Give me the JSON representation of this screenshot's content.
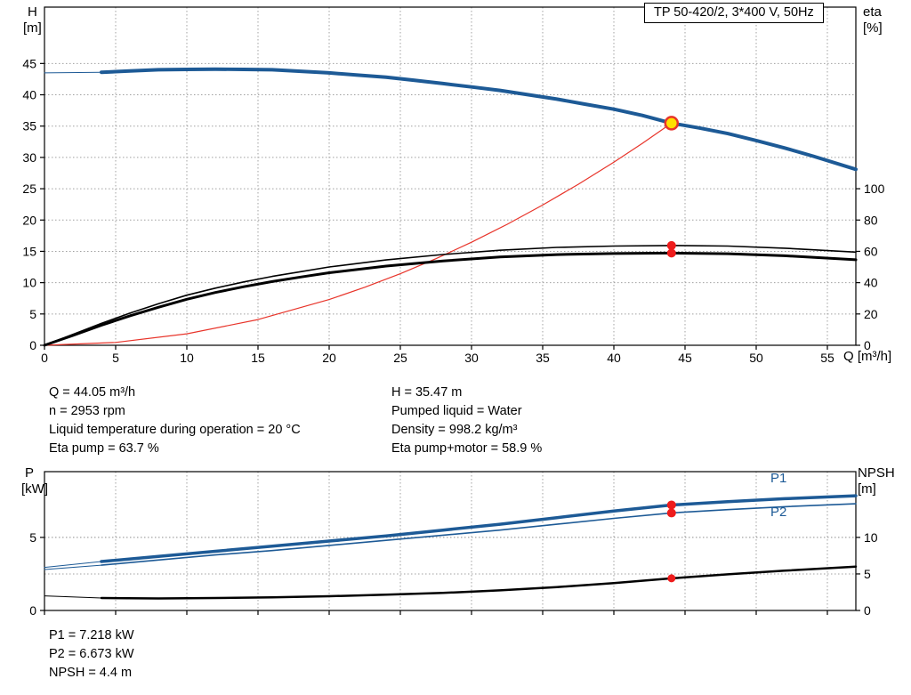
{
  "title_box": "TP 50-420/2, 3*400 V, 50Hz",
  "axes_labels": {
    "top_left_1": "H",
    "top_left_2": "[m]",
    "top_right_1": "eta",
    "top_right_2": "[%]",
    "x_label": "Q [m³/h]",
    "bottom_left_1": "P",
    "bottom_left_2": "[kW]",
    "bottom_right_1": "NPSH",
    "bottom_right_2": "[m]"
  },
  "curve_labels": {
    "p1": "P1",
    "p2": "P2"
  },
  "info": {
    "left": [
      "Q = 44.05 m³/h",
      "n = 2953 rpm",
      "Liquid temperature during operation = 20 °C",
      "Eta pump = 63.7 %"
    ],
    "right": [
      "H = 35.47 m",
      "Pumped liquid = Water",
      "Density = 998.2 kg/m³",
      "Eta pump+motor = 58.9 %"
    ]
  },
  "results": [
    "P1 = 7.218 kW",
    "P2 = 6.673 kW",
    "NPSH = 4.4 m"
  ],
  "colors": {
    "curve_blue": "#1d5a96",
    "system_red": "#e8342a",
    "marker_red": "#ee1c1c",
    "marker_yellow": "#ffe000",
    "grid": "#a0a0a0",
    "frame": "#000000"
  },
  "chart_data": [
    {
      "type": "line",
      "title": "TP 50-420/2, 3*400 V, 50Hz",
      "x_axis": {
        "label": "Q [m³/h]",
        "range": [
          0,
          57
        ],
        "ticks": [
          0,
          5,
          10,
          15,
          20,
          25,
          30,
          35,
          40,
          45,
          50,
          55
        ],
        "show_labels": true
      },
      "y_axis_left": {
        "label": "H [m]",
        "range": [
          0,
          54
        ],
        "ticks": [
          0,
          5,
          10,
          15,
          20,
          25,
          30,
          35,
          40,
          45
        ]
      },
      "y_axis_right": {
        "label": "eta [%]",
        "range": [
          0,
          216
        ],
        "ticks": [
          0,
          20,
          40,
          60,
          80,
          100
        ],
        "grid": false
      },
      "series": [
        {
          "name": "head-curve-lead",
          "axis": "left",
          "color": "#1d5a96",
          "width": 1,
          "points": [
            [
              0,
              43.5
            ],
            [
              4,
              43.6
            ]
          ]
        },
        {
          "name": "head-curve",
          "axis": "left",
          "color": "#1d5a96",
          "width": 4,
          "points": [
            [
              4,
              43.6
            ],
            [
              6,
              43.8
            ],
            [
              8,
              44.0
            ],
            [
              10,
              44.05
            ],
            [
              12,
              44.1
            ],
            [
              14,
              44.05
            ],
            [
              16,
              44.0
            ],
            [
              18,
              43.75
            ],
            [
              20,
              43.5
            ],
            [
              22,
              43.15
            ],
            [
              24,
              42.8
            ],
            [
              26,
              42.3
            ],
            [
              28,
              41.8
            ],
            [
              30,
              41.25
            ],
            [
              32,
              40.7
            ],
            [
              34,
              40.0
            ],
            [
              36,
              39.3
            ],
            [
              38,
              38.5
            ],
            [
              40,
              37.7
            ],
            [
              42,
              36.7
            ],
            [
              44.05,
              35.47
            ],
            [
              46,
              34.7
            ],
            [
              48,
              33.8
            ],
            [
              50,
              32.7
            ],
            [
              52,
              31.5
            ],
            [
              54,
              30.2
            ],
            [
              57,
              28.1
            ]
          ]
        },
        {
          "name": "system-curve",
          "axis": "left",
          "color": "#e8342a",
          "width": 1.2,
          "points": [
            [
              0,
              0
            ],
            [
              5,
              0.46
            ],
            [
              10,
              1.83
            ],
            [
              15,
              4.11
            ],
            [
              20,
              7.31
            ],
            [
              22.5,
              9.26
            ],
            [
              25,
              11.43
            ],
            [
              27.5,
              13.83
            ],
            [
              30,
              16.46
            ],
            [
              32.5,
              19.31
            ],
            [
              35,
              22.4
            ],
            [
              37.5,
              25.71
            ],
            [
              40,
              29.25
            ],
            [
              42,
              32.25
            ],
            [
              44.05,
              35.47
            ]
          ]
        },
        {
          "name": "eta-pump-curve",
          "axis": "right",
          "color": "#000000",
          "width": 1.6,
          "points": [
            [
              0,
              0
            ],
            [
              2,
              7
            ],
            [
              4,
              14
            ],
            [
              6,
              20.5
            ],
            [
              8,
              26.5
            ],
            [
              10,
              32
            ],
            [
              12,
              36.5
            ],
            [
              14,
              40.5
            ],
            [
              16,
              44
            ],
            [
              18,
              47
            ],
            [
              20,
              50
            ],
            [
              24,
              54.5
            ],
            [
              28,
              58
            ],
            [
              32,
              60.7
            ],
            [
              36,
              62.5
            ],
            [
              40,
              63.4
            ],
            [
              44.05,
              63.7
            ],
            [
              48,
              63.4
            ],
            [
              52,
              62.0
            ],
            [
              57,
              59.5
            ]
          ]
        },
        {
          "name": "eta-pump-motor-curve",
          "axis": "right",
          "color": "#000000",
          "width": 3,
          "points": [
            [
              0,
              0
            ],
            [
              2,
              6.3
            ],
            [
              4,
              12.8
            ],
            [
              6,
              18.8
            ],
            [
              8,
              24.3
            ],
            [
              10,
              29.4
            ],
            [
              12,
              33.7
            ],
            [
              14,
              37.4
            ],
            [
              16,
              40.7
            ],
            [
              18,
              43.6
            ],
            [
              20,
              46.3
            ],
            [
              24,
              50.6
            ],
            [
              28,
              53.9
            ],
            [
              32,
              56.4
            ],
            [
              36,
              57.9
            ],
            [
              40,
              58.6
            ],
            [
              44.05,
              58.9
            ],
            [
              48,
              58.5
            ],
            [
              52,
              57.2
            ],
            [
              57,
              54.6
            ]
          ]
        }
      ],
      "markers": [
        {
          "name": "duty-point",
          "axis": "left",
          "x": 44.05,
          "y": 35.47,
          "r": 7,
          "fill": "#ffe000",
          "stroke": "#e8342a",
          "stroke_width": 2.5
        },
        {
          "name": "eta-pump-point",
          "axis": "right",
          "x": 44.05,
          "y": 63.7,
          "r": 5,
          "fill": "#ee1c1c"
        },
        {
          "name": "eta-pump-motor-point",
          "axis": "right",
          "x": 44.05,
          "y": 58.9,
          "r": 5,
          "fill": "#ee1c1c"
        }
      ]
    },
    {
      "type": "line",
      "title": "",
      "x_axis": {
        "label": "",
        "range": [
          0,
          57
        ],
        "ticks": [
          0,
          5,
          10,
          15,
          20,
          25,
          30,
          35,
          40,
          45,
          50,
          55
        ],
        "show_labels": false
      },
      "y_axis_left": {
        "label": "P [kW]",
        "range": [
          0,
          9.5
        ],
        "ticks": [
          0,
          5
        ]
      },
      "y_axis_right": {
        "label": "NPSH [m]",
        "range": [
          0,
          19
        ],
        "ticks": [
          0,
          5,
          10
        ],
        "grid": true
      },
      "series": [
        {
          "name": "p1-curve-lead",
          "axis": "left",
          "color": "#1d5a96",
          "width": 1,
          "points": [
            [
              0,
              2.95
            ],
            [
              4,
              3.35
            ]
          ]
        },
        {
          "name": "p1-curve",
          "axis": "left",
          "color": "#1d5a96",
          "width": 3.5,
          "points": [
            [
              4,
              3.35
            ],
            [
              8,
              3.7
            ],
            [
              12,
              4.05
            ],
            [
              16,
              4.4
            ],
            [
              20,
              4.75
            ],
            [
              24,
              5.1
            ],
            [
              28,
              5.5
            ],
            [
              32,
              5.9
            ],
            [
              36,
              6.35
            ],
            [
              40,
              6.8
            ],
            [
              44.05,
              7.218
            ],
            [
              48,
              7.45
            ],
            [
              52,
              7.65
            ],
            [
              57,
              7.85
            ]
          ]
        },
        {
          "name": "p2-curve-lead",
          "axis": "left",
          "color": "#1d5a96",
          "width": 1,
          "points": [
            [
              0,
              2.8
            ],
            [
              4,
              3.1
            ]
          ]
        },
        {
          "name": "p2-curve",
          "axis": "left",
          "color": "#1d5a96",
          "width": 1.6,
          "points": [
            [
              4,
              3.1
            ],
            [
              8,
              3.45
            ],
            [
              12,
              3.8
            ],
            [
              16,
              4.1
            ],
            [
              20,
              4.45
            ],
            [
              24,
              4.8
            ],
            [
              28,
              5.15
            ],
            [
              32,
              5.5
            ],
            [
              36,
              5.9
            ],
            [
              40,
              6.3
            ],
            [
              44.05,
              6.673
            ],
            [
              48,
              6.9
            ],
            [
              52,
              7.1
            ],
            [
              57,
              7.3
            ]
          ]
        },
        {
          "name": "npsh-curve-lead",
          "axis": "right",
          "color": "#000000",
          "width": 1,
          "points": [
            [
              0,
              2.0
            ],
            [
              4,
              1.7
            ]
          ]
        },
        {
          "name": "npsh-curve",
          "axis": "right",
          "color": "#000000",
          "width": 2.5,
          "points": [
            [
              4,
              1.7
            ],
            [
              8,
              1.65
            ],
            [
              12,
              1.7
            ],
            [
              16,
              1.8
            ],
            [
              20,
              1.95
            ],
            [
              24,
              2.15
            ],
            [
              28,
              2.4
            ],
            [
              32,
              2.75
            ],
            [
              36,
              3.2
            ],
            [
              40,
              3.75
            ],
            [
              44.05,
              4.4
            ],
            [
              48,
              4.95
            ],
            [
              52,
              5.45
            ],
            [
              57,
              6.0
            ]
          ]
        }
      ],
      "markers": [
        {
          "name": "p1-point",
          "axis": "left",
          "x": 44.05,
          "y": 7.218,
          "r": 5,
          "fill": "#ee1c1c"
        },
        {
          "name": "p2-point",
          "axis": "left",
          "x": 44.05,
          "y": 6.673,
          "r": 5,
          "fill": "#ee1c1c"
        },
        {
          "name": "npsh-point",
          "axis": "right",
          "x": 44.05,
          "y": 4.4,
          "r": 4.5,
          "fill": "#ee1c1c"
        }
      ]
    }
  ]
}
